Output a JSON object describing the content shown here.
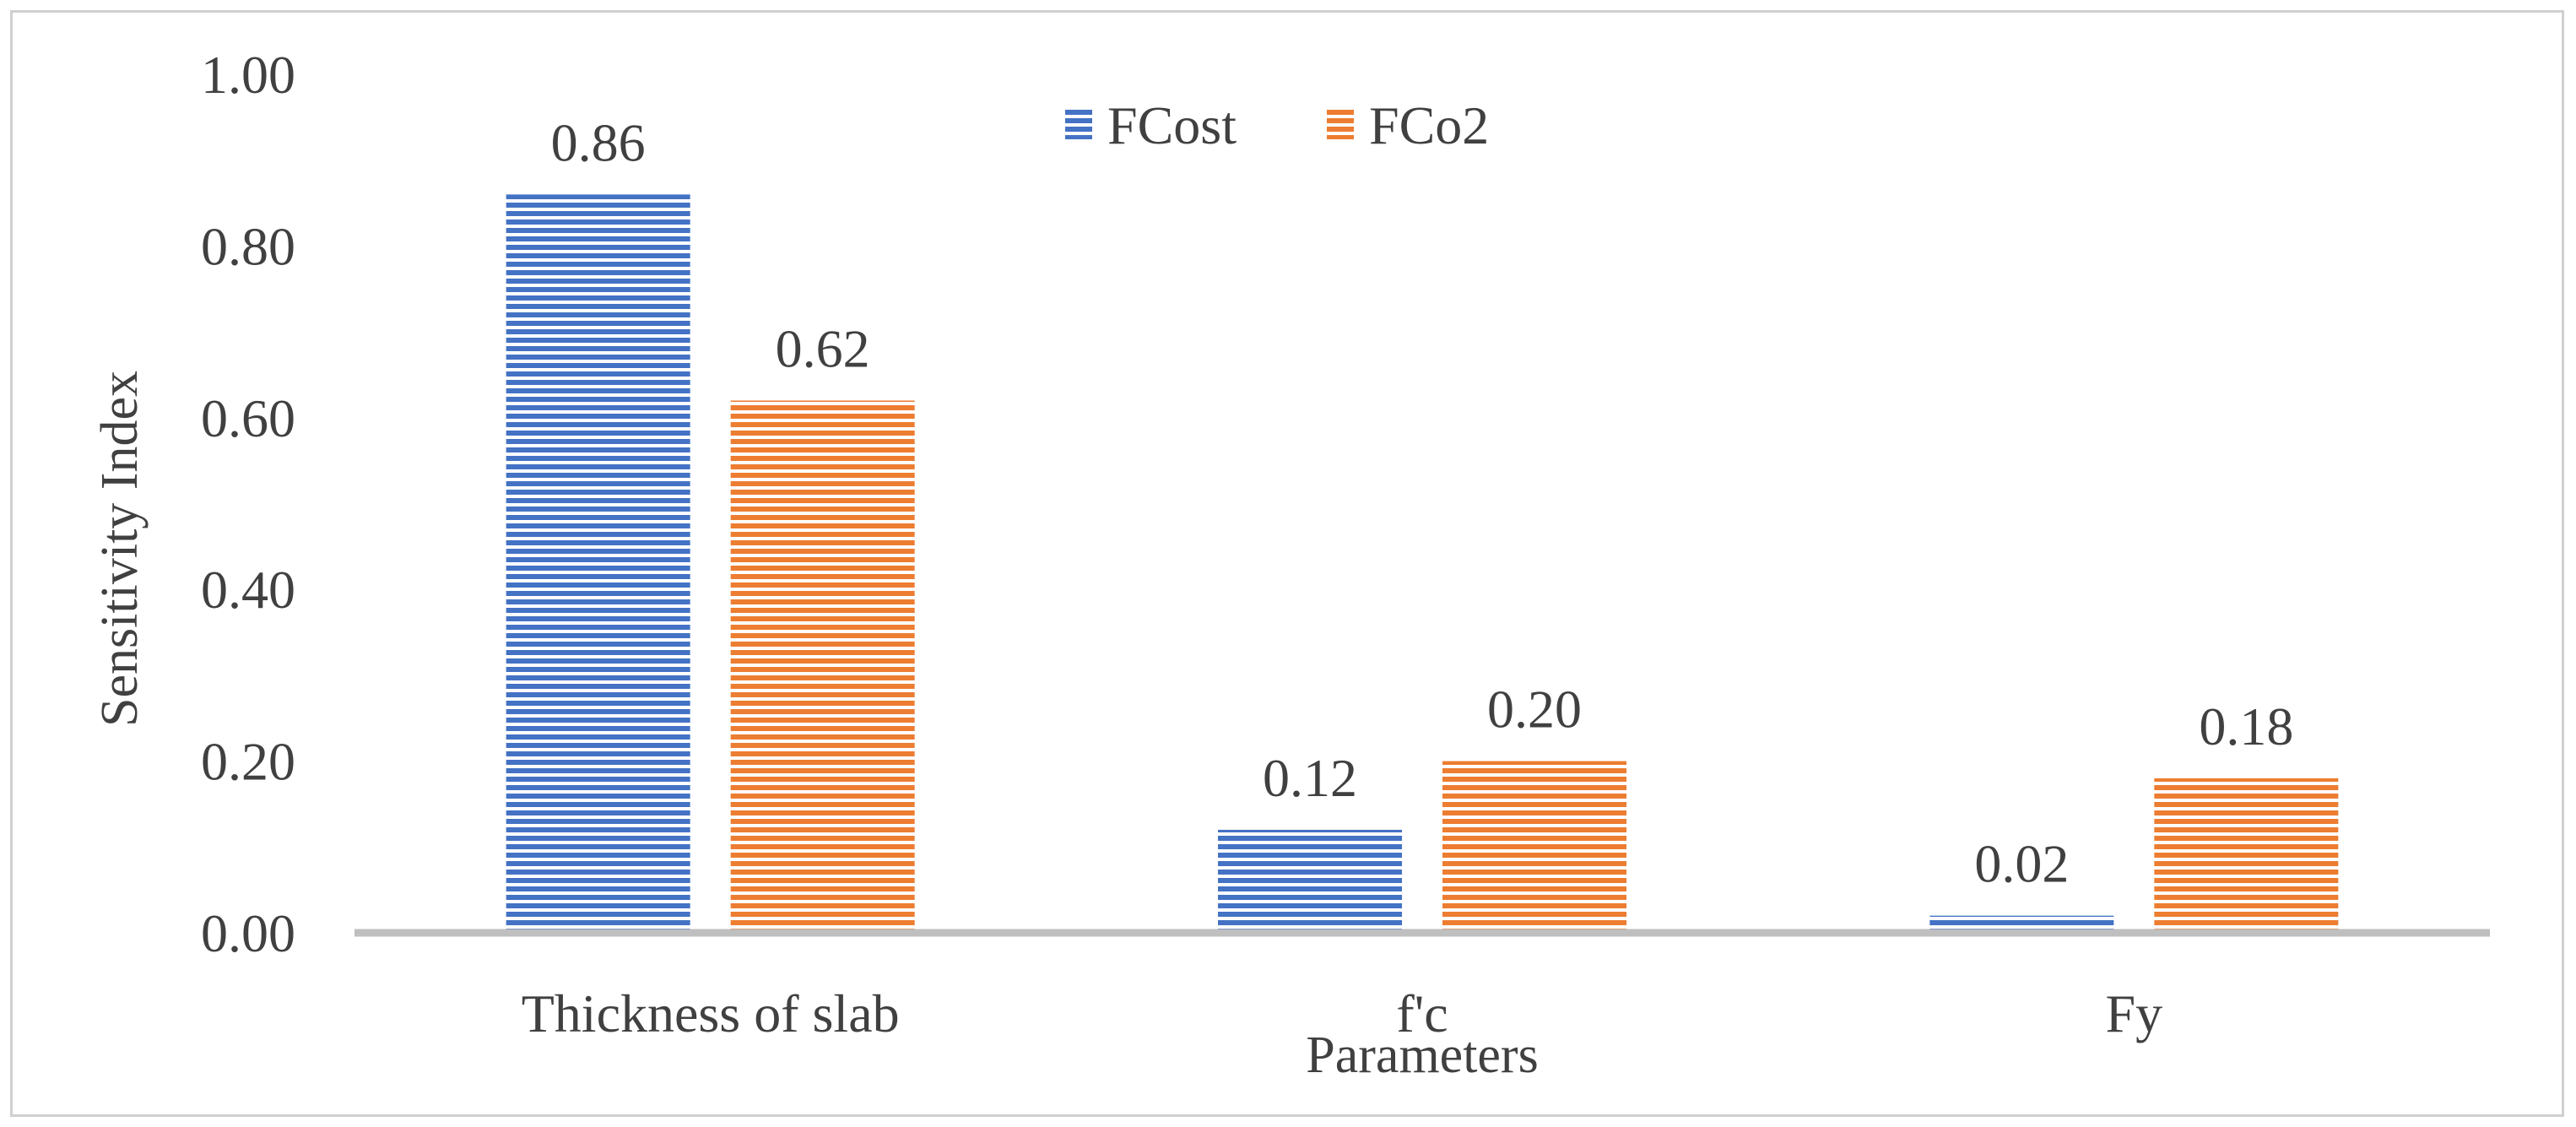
{
  "chart_data": {
    "type": "bar",
    "title": "",
    "xlabel": "Parameters",
    "ylabel": "Sensitivity Index",
    "ylim": [
      0,
      1
    ],
    "yticks": [
      "0.00",
      "0.20",
      "0.40",
      "0.60",
      "0.80",
      "1.00"
    ],
    "categories": [
      "Thickness of slab",
      "f'c",
      "Fy"
    ],
    "series": [
      {
        "name": "FCost",
        "values": [
          0.86,
          0.12,
          0.02
        ],
        "labels": [
          "0.86",
          "0.12",
          "0.02"
        ],
        "color": "#4472C4"
      },
      {
        "name": "FCo2",
        "values": [
          0.62,
          0.2,
          0.18
        ],
        "labels": [
          "0.62",
          "0.20",
          "0.18"
        ],
        "color": "#ED7D31"
      }
    ],
    "legend_position": "top-center",
    "grid": false
  }
}
